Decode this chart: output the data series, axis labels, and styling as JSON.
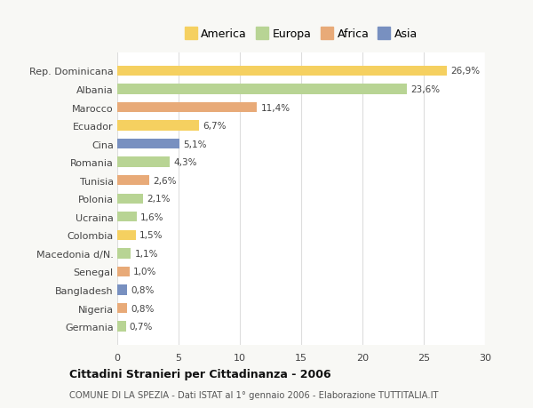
{
  "categories": [
    "Germania",
    "Nigeria",
    "Bangladesh",
    "Senegal",
    "Macedonia d/N.",
    "Colombia",
    "Ucraina",
    "Polonia",
    "Tunisia",
    "Romania",
    "Cina",
    "Ecuador",
    "Marocco",
    "Albania",
    "Rep. Dominicana"
  ],
  "values": [
    0.7,
    0.8,
    0.8,
    1.0,
    1.1,
    1.5,
    1.6,
    2.1,
    2.6,
    4.3,
    5.1,
    6.7,
    11.4,
    23.6,
    26.9
  ],
  "labels": [
    "0,7%",
    "0,8%",
    "0,8%",
    "1,0%",
    "1,1%",
    "1,5%",
    "1,6%",
    "2,1%",
    "2,6%",
    "4,3%",
    "5,1%",
    "6,7%",
    "11,4%",
    "23,6%",
    "26,9%"
  ],
  "colors": [
    "#b8d494",
    "#e8aa78",
    "#7890c0",
    "#e8aa78",
    "#b8d494",
    "#f5d060",
    "#b8d494",
    "#b8d494",
    "#e8aa78",
    "#b8d494",
    "#7890c0",
    "#f5d060",
    "#e8aa78",
    "#b8d494",
    "#f5d060"
  ],
  "legend_labels": [
    "America",
    "Europa",
    "Africa",
    "Asia"
  ],
  "legend_colors": [
    "#f5d060",
    "#b8d494",
    "#e8aa78",
    "#7890c0"
  ],
  "title": "Cittadini Stranieri per Cittadinanza - 2006",
  "subtitle": "COMUNE DI LA SPEZIA - Dati ISTAT al 1° gennaio 2006 - Elaborazione TUTTITALIA.IT",
  "xlim": [
    0,
    30
  ],
  "xticks": [
    0,
    5,
    10,
    15,
    20,
    25,
    30
  ],
  "bg_color": "#f8f8f5",
  "plot_bg_color": "#ffffff",
  "grid_color": "#dddddd",
  "text_color": "#444444"
}
